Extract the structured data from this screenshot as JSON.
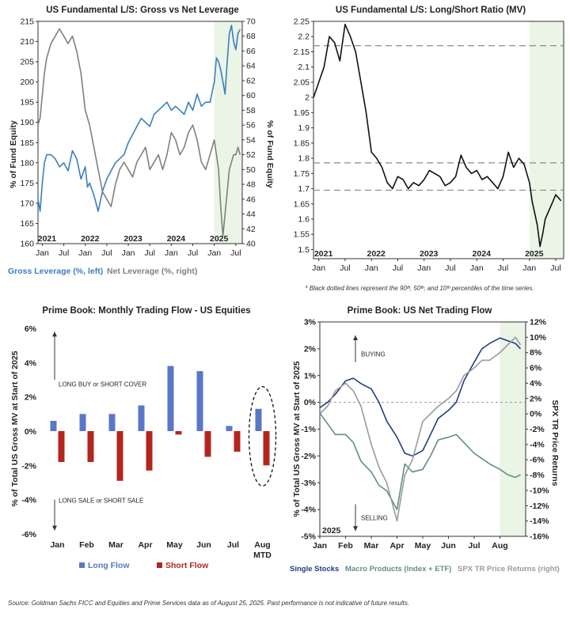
{
  "chart_data": [
    {
      "type": "line",
      "title": "US Fundamental L/S: Gross vs Net Leverage",
      "ylabel": "% of Fund Equity",
      "y2label": "% of Fund Equity",
      "ylim": [
        160,
        215
      ],
      "y2lim": [
        40,
        70
      ],
      "yticks": [
        160,
        165,
        170,
        175,
        180,
        185,
        190,
        195,
        200,
        205,
        210,
        215
      ],
      "y2ticks": [
        40,
        42,
        44,
        46,
        48,
        50,
        52,
        54,
        56,
        58,
        60,
        62,
        64,
        66,
        68,
        70
      ],
      "xrange": [
        2020.9,
        2025.65
      ],
      "xticks": [
        {
          "label": "Jan",
          "x": 2021.0
        },
        {
          "label": "Jul",
          "x": 2021.5
        },
        {
          "label": "Jan",
          "x": 2022.0
        },
        {
          "label": "Jul",
          "x": 2022.5
        },
        {
          "label": "Jan",
          "x": 2023.0
        },
        {
          "label": "Jul",
          "x": 2023.5
        },
        {
          "label": "Jan",
          "x": 2024.0
        },
        {
          "label": "Jul",
          "x": 2024.5
        },
        {
          "label": "Jan",
          "x": 2025.0
        },
        {
          "label": "Jul",
          "x": 2025.5
        }
      ],
      "year_labels": [
        {
          "label": "2021",
          "x": 2021.0
        },
        {
          "label": "2022",
          "x": 2022.0
        },
        {
          "label": "2023",
          "x": 2023.0
        },
        {
          "label": "2024",
          "x": 2024.0
        },
        {
          "label": "2025",
          "x": 2025.0
        }
      ],
      "shade_from": 2025.0,
      "series": [
        {
          "name": "Gross Leverage (%, left)",
          "axis": "left",
          "color": "#3a7fc1",
          "x": [
            2020.9,
            2020.95,
            2021.0,
            2021.05,
            2021.1,
            2021.2,
            2021.3,
            2021.4,
            2021.5,
            2021.6,
            2021.7,
            2021.8,
            2021.9,
            2022.0,
            2022.05,
            2022.1,
            2022.2,
            2022.3,
            2022.4,
            2022.5,
            2022.6,
            2022.7,
            2022.8,
            2022.9,
            2023.0,
            2023.1,
            2023.2,
            2023.3,
            2023.4,
            2023.5,
            2023.6,
            2023.7,
            2023.8,
            2023.9,
            2024.0,
            2024.1,
            2024.2,
            2024.3,
            2024.4,
            2024.5,
            2024.6,
            2024.7,
            2024.8,
            2024.9,
            2025.0,
            2025.05,
            2025.1,
            2025.15,
            2025.2,
            2025.25,
            2025.3,
            2025.35,
            2025.4,
            2025.45,
            2025.5,
            2025.55,
            2025.6
          ],
          "values": [
            171,
            168,
            175,
            180,
            182,
            182,
            181,
            179,
            180,
            178,
            183,
            181,
            176,
            179,
            174,
            175,
            172,
            168,
            173,
            176,
            178,
            180,
            181,
            182,
            185,
            187,
            189,
            191,
            190,
            189,
            192,
            193,
            194,
            195,
            193,
            194,
            193,
            192,
            195,
            193,
            197,
            194,
            195,
            195,
            200,
            206,
            205,
            203,
            200,
            197,
            205,
            212,
            214,
            210,
            208,
            212,
            213
          ]
        },
        {
          "name": "Net Leverage (%, right)",
          "axis": "right",
          "color": "#808080",
          "x": [
            2020.9,
            2020.95,
            2021.0,
            2021.05,
            2021.1,
            2021.15,
            2021.2,
            2021.3,
            2021.4,
            2021.5,
            2021.6,
            2021.7,
            2021.8,
            2021.9,
            2022.0,
            2022.1,
            2022.2,
            2022.3,
            2022.4,
            2022.5,
            2022.6,
            2022.7,
            2022.8,
            2022.9,
            2023.0,
            2023.1,
            2023.2,
            2023.3,
            2023.4,
            2023.5,
            2023.6,
            2023.7,
            2023.8,
            2023.9,
            2024.0,
            2024.1,
            2024.2,
            2024.3,
            2024.4,
            2024.5,
            2024.6,
            2024.7,
            2024.8,
            2024.9,
            2025.0,
            2025.05,
            2025.1,
            2025.15,
            2025.2,
            2025.25,
            2025.3,
            2025.35,
            2025.4,
            2025.45,
            2025.5,
            2025.55,
            2025.6
          ],
          "values": [
            56,
            57,
            60,
            63,
            65,
            66,
            67,
            68,
            69,
            68,
            67,
            68,
            66,
            63,
            58,
            56,
            53,
            50,
            47,
            46,
            45,
            48,
            50,
            51,
            50,
            49,
            51,
            52,
            53,
            50,
            51,
            52,
            50,
            52,
            55,
            54,
            52,
            53,
            55,
            56,
            54,
            51,
            50,
            52,
            54,
            52,
            50,
            45,
            41,
            44,
            47,
            50,
            51,
            52,
            52,
            53,
            52
          ]
        }
      ]
    },
    {
      "type": "line",
      "title": "US Fundamental L/S: Long/Short Ratio (MV)",
      "ylim": [
        1.47,
        2.25
      ],
      "yticks": [
        1.5,
        1.55,
        1.6,
        1.65,
        1.7,
        1.75,
        1.8,
        1.85,
        1.9,
        1.95,
        2.0,
        2.05,
        2.1,
        2.15,
        2.2,
        2.25
      ],
      "ytick_labels": [
        "1.5",
        "1.55",
        "1.6",
        "1.65",
        "1.7",
        "1.75",
        "1.8",
        "1.85",
        "1.9",
        "1.95",
        "2",
        "2.05",
        "2.1",
        "2.15",
        "2.2",
        "2.25"
      ],
      "xrange": [
        2020.9,
        2025.65
      ],
      "xticks": [
        {
          "label": "Jan",
          "x": 2021.0
        },
        {
          "label": "Jul",
          "x": 2021.5
        },
        {
          "label": "Jan",
          "x": 2022.0
        },
        {
          "label": "Jul",
          "x": 2022.5
        },
        {
          "label": "Jan",
          "x": 2023.0
        },
        {
          "label": "Jul",
          "x": 2023.5
        },
        {
          "label": "Jan",
          "x": 2024.0
        },
        {
          "label": "Jul",
          "x": 2024.5
        },
        {
          "label": "Jan",
          "x": 2025.0
        },
        {
          "label": "Jul",
          "x": 2025.5
        }
      ],
      "year_labels": [
        {
          "label": "2021",
          "x": 2021.0
        },
        {
          "label": "2022",
          "x": 2022.0
        },
        {
          "label": "2023",
          "x": 2023.0
        },
        {
          "label": "2024",
          "x": 2024.0
        },
        {
          "label": "2025",
          "x": 2025.0
        }
      ],
      "percentile_lines": [
        2.17,
        1.785,
        1.695
      ],
      "shade_from": 2025.0,
      "series": [
        {
          "name": "Long/Short Ratio",
          "color": "#111111",
          "x": [
            2020.9,
            2021.0,
            2021.1,
            2021.2,
            2021.3,
            2021.4,
            2021.5,
            2021.6,
            2021.7,
            2021.8,
            2021.9,
            2022.0,
            2022.1,
            2022.2,
            2022.3,
            2022.4,
            2022.5,
            2022.6,
            2022.7,
            2022.8,
            2022.9,
            2023.0,
            2023.1,
            2023.2,
            2023.3,
            2023.4,
            2023.5,
            2023.6,
            2023.7,
            2023.8,
            2023.9,
            2024.0,
            2024.1,
            2024.2,
            2024.3,
            2024.4,
            2024.5,
            2024.6,
            2024.7,
            2024.8,
            2024.9,
            2025.0,
            2025.05,
            2025.1,
            2025.15,
            2025.2,
            2025.25,
            2025.3,
            2025.4,
            2025.5,
            2025.6
          ],
          "values": [
            2.0,
            2.05,
            2.1,
            2.2,
            2.18,
            2.12,
            2.24,
            2.2,
            2.15,
            2.05,
            1.95,
            1.82,
            1.8,
            1.77,
            1.72,
            1.7,
            1.74,
            1.73,
            1.7,
            1.72,
            1.71,
            1.73,
            1.76,
            1.75,
            1.74,
            1.71,
            1.72,
            1.74,
            1.81,
            1.77,
            1.75,
            1.76,
            1.73,
            1.74,
            1.72,
            1.7,
            1.74,
            1.82,
            1.77,
            1.8,
            1.78,
            1.72,
            1.66,
            1.62,
            1.58,
            1.51,
            1.55,
            1.6,
            1.64,
            1.68,
            1.66
          ]
        }
      ],
      "footnote": "* Black dotted lines represent the 90ᵗʰ, 50ᵗʰ, and 10ᵗʰ percentiles of the time series."
    },
    {
      "type": "bar",
      "title": "Prime Book: Monthly Trading Flow - US Equities",
      "ylabel": "% of Total US Gross MV at Start of 2025",
      "ylim": [
        -6,
        6
      ],
      "yticks": [
        -6,
        -4,
        -2,
        0,
        2,
        4,
        6
      ],
      "ytick_labels": [
        "-6%",
        "-4%",
        "-2%",
        "0%",
        "2%",
        "4%",
        "6%"
      ],
      "categories": [
        "Jan",
        "Feb",
        "Mar",
        "Apr",
        "May",
        "Jun",
        "Jul",
        "Aug MTD"
      ],
      "series": [
        {
          "name": "Long Flow",
          "color": "#5b76c9",
          "values": [
            0.6,
            1.0,
            1.0,
            1.5,
            3.8,
            3.5,
            0.3,
            1.3
          ]
        },
        {
          "name": "Short Flow",
          "color": "#b3261e",
          "values": [
            -1.8,
            -1.8,
            -2.9,
            -2.3,
            -0.2,
            -1.5,
            -1.2,
            -2.0
          ]
        }
      ],
      "annotations": [
        "LONG BUY or SHORT COVER",
        "LONG SALE or SHORT SALE"
      ],
      "highlight": "Aug MTD"
    },
    {
      "type": "line",
      "title": "Prime Book: US Net Trading Flow",
      "ylabel": "% of Total US Gross MV at Start of 2025",
      "y2label": "SPX TR Price Returns",
      "ylim": [
        -5,
        3
      ],
      "y2lim": [
        -16,
        12
      ],
      "yticks": [
        -5,
        -4,
        -3,
        -2,
        -1,
        0,
        1,
        2,
        3
      ],
      "ytick_labels": [
        "-5%",
        "-4%",
        "-3%",
        "-2%",
        "-1%",
        "0%",
        "1%",
        "2%",
        "3%"
      ],
      "y2ticks": [
        -16,
        -14,
        -12,
        -10,
        -8,
        -6,
        -4,
        -2,
        0,
        2,
        4,
        6,
        8,
        10,
        12
      ],
      "y2tick_labels": [
        "-16%",
        "-14%",
        "-12%",
        "-10%",
        "-8%",
        "-6%",
        "-4%",
        "-2%",
        "0%",
        "2%",
        "4%",
        "6%",
        "8%",
        "10%",
        "12%"
      ],
      "xrange": [
        0,
        8.0
      ],
      "xticks": [
        {
          "label": "Jan",
          "x": 0
        },
        {
          "label": "Feb",
          "x": 1
        },
        {
          "label": "Mar",
          "x": 2
        },
        {
          "label": "Apr",
          "x": 3
        },
        {
          "label": "May",
          "x": 4
        },
        {
          "label": "Jun",
          "x": 5
        },
        {
          "label": "Jul",
          "x": 6
        },
        {
          "label": "Aug",
          "x": 7
        }
      ],
      "year_label": "2025",
      "shade_from": 7.0,
      "annotations": [
        "BUYING",
        "SELLING"
      ],
      "series": [
        {
          "name": "Single Stocks",
          "axis": "left",
          "color": "#1f3c88",
          "x": [
            0,
            0.3,
            0.6,
            1.0,
            1.3,
            1.6,
            2.0,
            2.3,
            2.6,
            3.0,
            3.3,
            3.6,
            4.0,
            4.3,
            4.6,
            5.0,
            5.3,
            5.6,
            6.0,
            6.3,
            6.6,
            7.0,
            7.3,
            7.6,
            7.8
          ],
          "values": [
            -0.2,
            0.0,
            0.3,
            0.8,
            0.9,
            0.7,
            0.5,
            0.0,
            -0.7,
            -1.3,
            -1.9,
            -2.0,
            -1.8,
            -1.2,
            -0.6,
            -0.3,
            0.0,
            0.8,
            1.5,
            2.0,
            2.2,
            2.4,
            2.3,
            2.2,
            2.0
          ]
        },
        {
          "name": "Macro Products (Index + ETF)",
          "axis": "left",
          "color": "#5f8e88",
          "x": [
            0,
            0.3,
            0.6,
            1.0,
            1.3,
            1.6,
            2.0,
            2.3,
            2.6,
            3.0,
            3.3,
            3.6,
            4.0,
            4.3,
            4.6,
            5.0,
            5.3,
            5.6,
            6.0,
            6.3,
            6.6,
            7.0,
            7.3,
            7.6,
            7.8
          ],
          "values": [
            -0.4,
            -0.8,
            -1.2,
            -1.2,
            -1.5,
            -2.2,
            -2.6,
            -3.1,
            -3.3,
            -4.0,
            -2.3,
            -2.6,
            -2.5,
            -2.0,
            -1.4,
            -1.3,
            -1.2,
            -1.5,
            -1.9,
            -2.1,
            -2.3,
            -2.5,
            -2.7,
            -2.8,
            -2.7
          ]
        },
        {
          "name": "SPX TR Price Returns (right)",
          "axis": "right",
          "color": "#9a9a9a",
          "x": [
            0,
            0.3,
            0.6,
            1.0,
            1.3,
            1.6,
            2.0,
            2.3,
            2.6,
            3.0,
            3.3,
            3.6,
            4.0,
            4.3,
            4.6,
            5.0,
            5.3,
            5.6,
            6.0,
            6.3,
            6.6,
            7.0,
            7.3,
            7.6,
            7.8
          ],
          "values": [
            0,
            1,
            3,
            4,
            3,
            1,
            -4,
            -7,
            -9,
            -14,
            -8,
            -6,
            -1,
            0,
            1,
            2,
            3,
            5,
            6,
            7,
            7,
            8,
            9,
            10,
            9
          ]
        }
      ]
    }
  ],
  "source_note": "Source: Goldman Sachs FICC and Equities and Prime Services data as of August 25, 2025. Past performance is not indicative of future results."
}
